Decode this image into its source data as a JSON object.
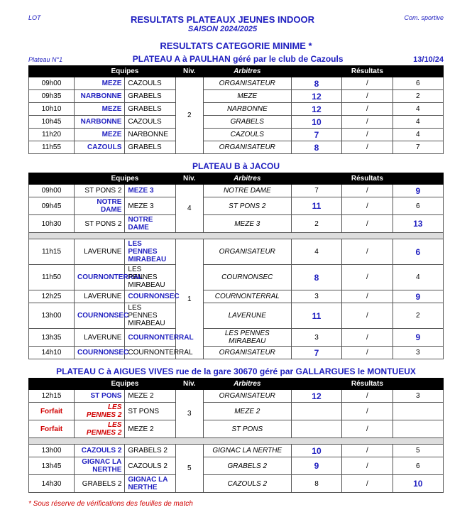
{
  "header": {
    "lot": "LOT",
    "com": "Com. sportive",
    "title": "RESULTATS PLATEAUX JEUNES INDOOR",
    "season": "SAISON 2024/2025",
    "cat": "RESULTATS CATEGORIE MINIME *"
  },
  "plateau_a": {
    "left": "Plateau N°1",
    "title": "PLATEAU A à PAULHAN géré par le club de Cazouls",
    "date": "13/10/24",
    "niv": "2",
    "rows": [
      {
        "time": "09h00",
        "t1": "MEZE",
        "t2": "CAZOULS",
        "arb": "ORGANISATEUR",
        "s1": "8",
        "s2": "6",
        "w": 1
      },
      {
        "time": "09h35",
        "t1": "NARBONNE",
        "t2": "GRABELS",
        "arb": "MEZE",
        "s1": "12",
        "s2": "2",
        "w": 1
      },
      {
        "time": "10h10",
        "t1": "MEZE",
        "t2": "GRABELS",
        "arb": "NARBONNE",
        "s1": "12",
        "s2": "4",
        "w": 1
      },
      {
        "time": "10h45",
        "t1": "NARBONNE",
        "t2": "CAZOULS",
        "arb": "GRABELS",
        "s1": "10",
        "s2": "4",
        "w": 1
      },
      {
        "time": "11h20",
        "t1": "MEZE",
        "t2": "NARBONNE",
        "arb": "CAZOULS",
        "s1": "7",
        "s2": "4",
        "w": 1
      },
      {
        "time": "11h55",
        "t1": "CAZOULS",
        "t2": "GRABELS",
        "arb": "ORGANISATEUR",
        "s1": "8",
        "s2": "7",
        "w": 1
      }
    ]
  },
  "plateau_b": {
    "title": "PLATEAU B à JACOU",
    "niv1": "4",
    "rows1": [
      {
        "time": "09h00",
        "t1": "ST PONS 2",
        "t2": "MEZE 3",
        "arb": "NOTRE DAME",
        "s1": "7",
        "s2": "9",
        "w": 2
      },
      {
        "time": "09h45",
        "t1": "NOTRE DAME",
        "t2": "MEZE 3",
        "arb": "ST PONS 2",
        "s1": "11",
        "s2": "6",
        "w": 1
      },
      {
        "time": "10h30",
        "t1": "ST PONS 2",
        "t2": "NOTRE DAME",
        "arb": "MEZE 3",
        "s1": "2",
        "s2": "13",
        "w": 2
      }
    ],
    "niv2": "1",
    "rows2": [
      {
        "time": "11h15",
        "t1": "LAVERUNE",
        "t2": "LES PENNES MIRABEAU",
        "arb": "ORGANISATEUR",
        "s1": "4",
        "s2": "6",
        "w": 2
      },
      {
        "time": "11h50",
        "t1": "COURNONTERRAL",
        "t2": "LES PENNES MIRABEAU",
        "arb": "COURNONSEC",
        "s1": "8",
        "s2": "4",
        "w": 1
      },
      {
        "time": "12h25",
        "t1": "LAVERUNE",
        "t2": "COURNONSEC",
        "arb": "COURNONTERRAL",
        "s1": "3",
        "s2": "9",
        "w": 2
      },
      {
        "time": "13h00",
        "t1": "COURNONSEC",
        "t2": "LES PENNES MIRABEAU",
        "arb": "LAVERUNE",
        "s1": "11",
        "s2": "2",
        "w": 1
      },
      {
        "time": "13h35",
        "t1": "LAVERUNE",
        "t2": "COURNONTERRAL",
        "arb": "LES PENNES MIRABEAU",
        "s1": "3",
        "s2": "9",
        "w": 2
      },
      {
        "time": "14h10",
        "t1": "COURNONSEC",
        "t2": "COURNONTERRAL",
        "arb": "ORGANISATEUR",
        "s1": "7",
        "s2": "3",
        "w": 1
      }
    ]
  },
  "plateau_c": {
    "title": "PLATEAU C à AIGUES VIVES rue de la gare 30670 géré par GALLARGUES le MONTUEUX",
    "niv1": "3",
    "rows1": [
      {
        "time": "12h15",
        "t1": "ST PONS",
        "t2": "MEZE 2",
        "arb": "ORGANISATEUR",
        "s1": "12",
        "s2": "3",
        "w": 1,
        "ff": false
      },
      {
        "time": "Forfait",
        "t1": "LES PENNES 2",
        "t2": "ST PONS",
        "arb": "MEZE 2",
        "s1": "",
        "s2": "",
        "w": 0,
        "ff": true
      },
      {
        "time": "Forfait",
        "t1": "LES PENNES 2",
        "t2": "MEZE 2",
        "arb": "ST PONS",
        "s1": "",
        "s2": "",
        "w": 0,
        "ff": true
      }
    ],
    "niv2": "5",
    "rows2": [
      {
        "time": "13h00",
        "t1": "CAZOULS 2",
        "t2": "GRABELS 2",
        "arb": "GIGNAC LA NERTHE",
        "s1": "10",
        "s2": "5",
        "w": 1
      },
      {
        "time": "13h45",
        "t1": "GIGNAC LA NERTHE",
        "t2": "CAZOULS 2",
        "arb": "GRABELS 2",
        "s1": "9",
        "s2": "6",
        "w": 1
      },
      {
        "time": "14h30",
        "t1": "GRABELS 2",
        "t2": "GIGNAC LA NERTHE",
        "arb": "CAZOULS 2",
        "s1": "8",
        "s2": "10",
        "w": 2
      }
    ]
  },
  "cols": {
    "equipes": "Equipes",
    "niv": "Niv.",
    "arb": "Arbitres",
    "res": "Résultats"
  },
  "footer": "*    Sous réserve de vérifications des feuilles de match"
}
